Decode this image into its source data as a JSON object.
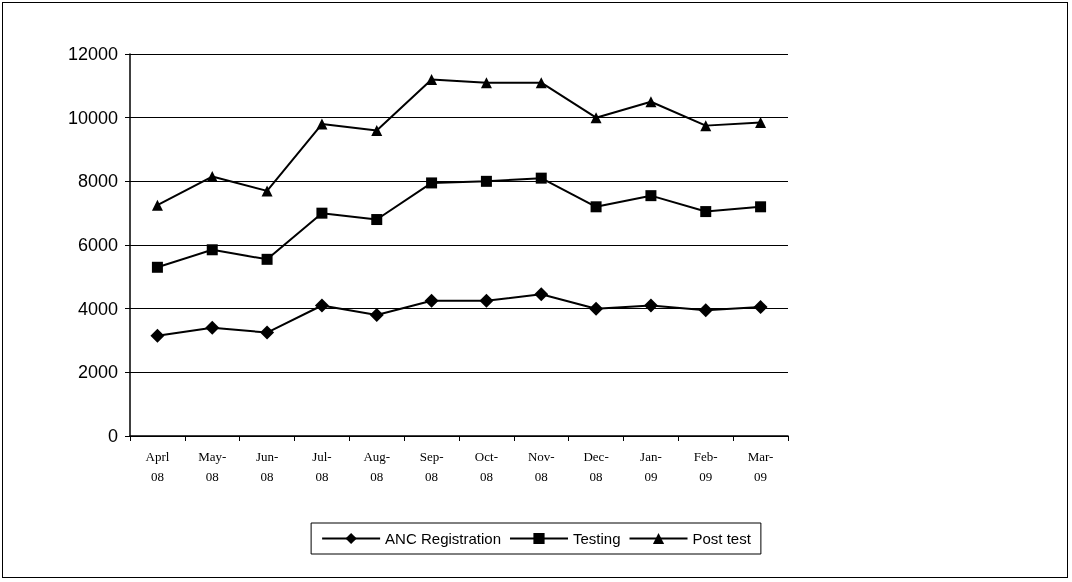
{
  "chart_data": {
    "type": "line",
    "categories": [
      "Aprl\n08",
      "May-\n08",
      "Jun-\n08",
      "Jul-\n08",
      "Aug-\n08",
      "Sep-\n08",
      "Oct-\n08",
      "Nov-\n08",
      "Dec-\n08",
      "Jan-\n09",
      "Feb-\n09",
      "Mar-\n09"
    ],
    "series": [
      {
        "name": "ANC Registration",
        "color": "#000000",
        "marker": "diamond",
        "values": [
          3150,
          3400,
          3250,
          4100,
          3800,
          4250,
          4250,
          4450,
          4000,
          4100,
          3950,
          4050
        ]
      },
      {
        "name": "Testing",
        "color": "#000000",
        "marker": "square",
        "values": [
          5300,
          5850,
          5550,
          7000,
          6800,
          7950,
          8000,
          8100,
          7200,
          7550,
          7050,
          7200
        ]
      },
      {
        "name": "Post test",
        "color": "#000000",
        "marker": "triangle",
        "values": [
          7250,
          8150,
          7700,
          9800,
          9600,
          11200,
          11100,
          11100,
          10000,
          10500,
          9750,
          9850
        ]
      }
    ],
    "ylim": [
      0,
      12000
    ],
    "yticks": [
      0,
      2000,
      4000,
      6000,
      8000,
      10000,
      12000
    ],
    "grid": "y",
    "legend": "bottom",
    "line_style": "solid"
  }
}
